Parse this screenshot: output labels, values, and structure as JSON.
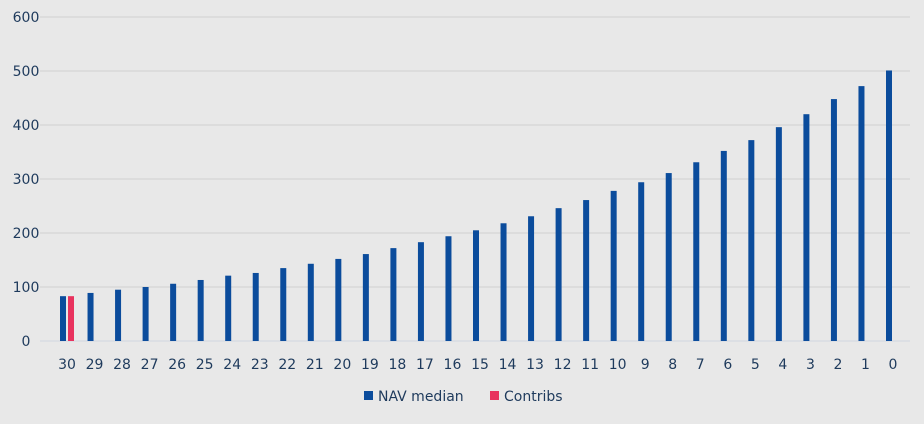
{
  "chart_data": {
    "type": "bar",
    "title": "",
    "xlabel": "",
    "ylabel": "",
    "ylim": [
      0,
      600
    ],
    "yticks": [
      0,
      100,
      200,
      300,
      400,
      500,
      600
    ],
    "grid": true,
    "legend_position": "bottom",
    "categories": [
      "30",
      "29",
      "28",
      "27",
      "26",
      "25",
      "24",
      "23",
      "22",
      "21",
      "20",
      "19",
      "18",
      "17",
      "16",
      "15",
      "14",
      "13",
      "12",
      "11",
      "10",
      "9",
      "8",
      "7",
      "6",
      "5",
      "4",
      "3",
      "2",
      "1",
      "0"
    ],
    "series": [
      {
        "name": "NAV median",
        "color": "#0b4c9c",
        "values": [
          83,
          89,
          95,
          100,
          106,
          113,
          121,
          126,
          135,
          143,
          152,
          161,
          172,
          183,
          194,
          205,
          218,
          231,
          246,
          261,
          278,
          294,
          311,
          331,
          352,
          372,
          396,
          420,
          448,
          472,
          501
        ]
      },
      {
        "name": "Contribs",
        "color": "#e8325e",
        "values": [
          83,
          0,
          0,
          0,
          0,
          0,
          0,
          0,
          0,
          0,
          0,
          0,
          0,
          0,
          0,
          0,
          0,
          0,
          0,
          0,
          0,
          0,
          0,
          0,
          0,
          0,
          0,
          0,
          0,
          0,
          0
        ]
      }
    ]
  }
}
